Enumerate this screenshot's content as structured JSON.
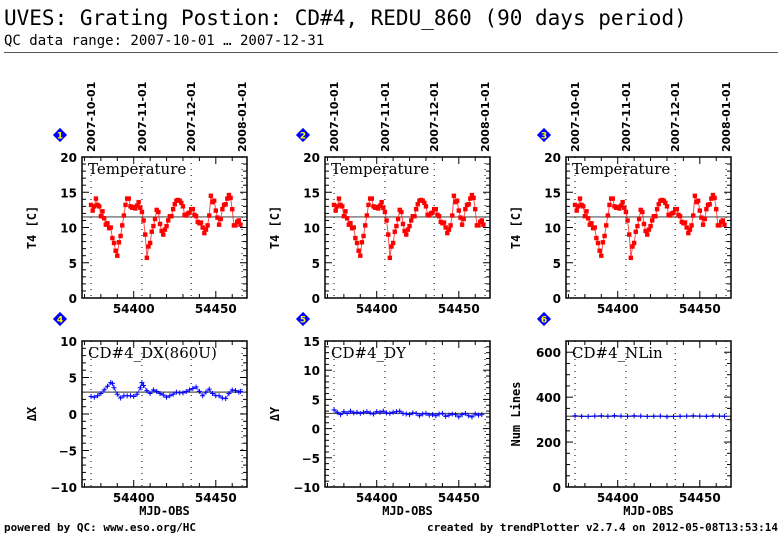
{
  "header": {
    "title": "UVES: Grating Postion: CD#4, REDU_860 (90 days period)",
    "subtitle": "QC data range: 2007-10-01 … 2007-12-31"
  },
  "footer": {
    "left": "powered by QC: www.eso.org/HC",
    "right": "created by trendPlotter v2.7.4 on 2012-05-08T13:53:14"
  },
  "colors": {
    "temperature": "#ff0000",
    "position": "#0000ff",
    "reference_line": "#555555",
    "badge": "#0000ff",
    "badge_text": "#ffff00"
  },
  "date_markers": {
    "labels": [
      "2007-10-01",
      "2007-11-01",
      "2007-12-01",
      "2008-01-01"
    ],
    "mjd": [
      54374,
      54405,
      54435,
      54466
    ]
  },
  "chart_data": [
    {
      "type": "line",
      "panel": 1,
      "badge": "1",
      "title": "Temperature",
      "xlabel": "",
      "ylabel": "T4 [C]",
      "xlim": [
        54368.5,
        54469
      ],
      "ylim": [
        0,
        20
      ],
      "xticks": [
        54400,
        54450
      ],
      "yticks": [
        0,
        5,
        10,
        15,
        20
      ],
      "reference": 11.5,
      "series_color": "temperature",
      "x": [
        54374,
        54375,
        54376,
        54377,
        54378,
        54379,
        54380,
        54381,
        54382,
        54383,
        54384,
        54385,
        54386,
        54387,
        54388,
        54389,
        54390,
        54391,
        54392,
        54393,
        54394,
        54395,
        54396,
        54397,
        54398,
        54399,
        54400,
        54401,
        54402,
        54403,
        54404,
        54405,
        54406,
        54407,
        54408,
        54409,
        54410,
        54411,
        54412,
        54413,
        54414,
        54415,
        54416,
        54417,
        54418,
        54419,
        54420,
        54421,
        54422,
        54423,
        54424,
        54425,
        54426,
        54427,
        54428,
        54429,
        54430,
        54431,
        54432,
        54433,
        54434,
        54435,
        54436,
        54437,
        54438,
        54439,
        54440,
        54441,
        54442,
        54443,
        54444,
        54445,
        54446,
        54447,
        54448,
        54449,
        54450,
        54451,
        54452,
        54453,
        54454,
        54455,
        54456,
        54457,
        54458,
        54459,
        54460,
        54461,
        54462,
        54463,
        54464,
        54465
      ],
      "values": [
        13.2,
        12.4,
        13.0,
        14.1,
        13.2,
        13.0,
        11.6,
        12.3,
        11.3,
        10.4,
        10.6,
        9.9,
        10.0,
        8.5,
        7.8,
        6.7,
        6.0,
        7.9,
        8.8,
        10.3,
        11.7,
        13.2,
        14.1,
        14.1,
        13.0,
        12.8,
        12.9,
        12.7,
        13.1,
        13.6,
        12.8,
        12.2,
        11.0,
        9.0,
        5.7,
        7.3,
        7.8,
        9.4,
        10.2,
        11.2,
        12.5,
        12.2,
        10.5,
        9.5,
        9.0,
        9.7,
        10.2,
        11.0,
        11.6,
        11.6,
        12.6,
        13.3,
        13.8,
        13.9,
        13.8,
        13.5,
        13.0,
        11.8,
        11.7,
        12.0,
        12.1,
        12.6,
        12.6,
        11.8,
        11.6,
        10.8,
        10.6,
        10.7,
        10.0,
        9.2,
        9.7,
        10.3,
        11.7,
        14.5,
        13.6,
        13.8,
        12.4,
        11.4,
        10.4,
        11.2,
        12.6,
        13.2,
        13.3,
        14.1,
        14.6,
        14.2,
        12.6,
        10.3,
        10.3,
        10.8,
        11.0,
        10.4
      ]
    },
    {
      "type": "line",
      "panel": 2,
      "badge": "2",
      "title": "Temperature",
      "xlabel": "",
      "ylabel": "T4 [C]",
      "xlim": [
        54368.5,
        54469
      ],
      "ylim": [
        0,
        20
      ],
      "xticks": [
        54400,
        54450
      ],
      "yticks": [
        0,
        5,
        10,
        15,
        20
      ],
      "reference": 11.5,
      "series_color": "temperature",
      "same_data_as_panel": 1
    },
    {
      "type": "line",
      "panel": 3,
      "badge": "3",
      "title": "Temperature",
      "xlabel": "",
      "ylabel": "T4 [C]",
      "xlim": [
        54368.5,
        54469
      ],
      "ylim": [
        0,
        20
      ],
      "xticks": [
        54400,
        54450
      ],
      "yticks": [
        0,
        5,
        10,
        15,
        20
      ],
      "reference": 11.5,
      "series_color": "temperature",
      "same_data_as_panel": 1
    },
    {
      "type": "line",
      "panel": 4,
      "badge": "4",
      "title": "CD#4_DX(860U)",
      "xlabel": "MJD-OBS",
      "ylabel": "ΔX",
      "xlim": [
        54368.5,
        54469
      ],
      "ylim": [
        -10,
        10
      ],
      "xticks": [
        54400,
        54450
      ],
      "yticks": [
        -10,
        -5,
        0,
        5,
        10
      ],
      "reference": 3.0,
      "series_color": "position",
      "x": [
        54374,
        54376,
        54378,
        54380,
        54382,
        54384,
        54386,
        54387,
        54388,
        54390,
        54392,
        54394,
        54396,
        54398,
        54400,
        54402,
        54404,
        54405,
        54406,
        54408,
        54410,
        54412,
        54414,
        54416,
        54418,
        54420,
        54422,
        54424,
        54426,
        54428,
        54430,
        54432,
        54434,
        54436,
        54438,
        54440,
        54442,
        54444,
        54446,
        54448,
        54450,
        54452,
        54454,
        54456,
        54458,
        54460,
        54462,
        54464,
        54465
      ],
      "values": [
        2.4,
        2.3,
        2.5,
        2.8,
        3.3,
        3.8,
        4.3,
        4.2,
        3.6,
        2.7,
        2.2,
        2.5,
        2.5,
        2.5,
        2.4,
        2.7,
        3.6,
        4.3,
        3.9,
        3.2,
        2.8,
        3.3,
        3.1,
        2.8,
        2.6,
        2.3,
        2.5,
        2.7,
        3.0,
        2.9,
        2.9,
        3.1,
        3.3,
        3.5,
        3.7,
        3.1,
        2.5,
        3.0,
        3.4,
        2.8,
        2.5,
        2.5,
        2.2,
        2.1,
        2.8,
        3.3,
        3.2,
        3.0,
        3.1
      ]
    },
    {
      "type": "line",
      "panel": 5,
      "badge": "5",
      "title": "CD#4_DY",
      "xlabel": "MJD-OBS",
      "ylabel": "ΔY",
      "xlim": [
        54368.5,
        54469
      ],
      "ylim": [
        -10,
        15
      ],
      "xticks": [
        54400,
        54450
      ],
      "yticks": [
        -10,
        -5,
        0,
        5,
        10,
        15
      ],
      "reference": 2.6,
      "series_color": "position",
      "x": [
        54374,
        54376,
        54378,
        54380,
        54382,
        54384,
        54386,
        54388,
        54390,
        54392,
        54394,
        54396,
        54398,
        54400,
        54402,
        54404,
        54406,
        54408,
        54410,
        54412,
        54414,
        54416,
        54418,
        54420,
        54422,
        54424,
        54426,
        54428,
        54430,
        54432,
        54434,
        54436,
        54438,
        54440,
        54442,
        54444,
        54446,
        54448,
        54450,
        54452,
        54454,
        54456,
        54458,
        54460,
        54462,
        54464
      ],
      "values": [
        3.2,
        2.8,
        2.4,
        2.9,
        2.6,
        3.0,
        2.7,
        2.8,
        2.6,
        2.8,
        2.9,
        2.7,
        2.5,
        2.9,
        2.8,
        3.0,
        2.7,
        2.6,
        2.8,
        2.9,
        3.0,
        2.6,
        2.5,
        2.4,
        2.7,
        2.6,
        2.2,
        2.5,
        2.6,
        2.3,
        2.4,
        2.2,
        2.5,
        2.6,
        2.1,
        2.3,
        2.5,
        2.4,
        2.0,
        2.4,
        2.6,
        2.2,
        2.0,
        2.5,
        2.3,
        2.4
      ]
    },
    {
      "type": "line",
      "panel": 6,
      "badge": "6",
      "title": "CD#4_NLin",
      "xlabel": "MJD-OBS",
      "ylabel": "Num Lines",
      "xlim": [
        54368.5,
        54469
      ],
      "ylim": [
        0,
        650
      ],
      "xticks": [
        54400,
        54450
      ],
      "yticks": [
        0,
        200,
        400,
        600
      ],
      "reference": 315,
      "series_color": "position",
      "x": [
        54374,
        54378,
        54382,
        54386,
        54390,
        54394,
        54398,
        54402,
        54406,
        54410,
        54414,
        54418,
        54422,
        54426,
        54430,
        54434,
        54438,
        54442,
        54446,
        54450,
        54454,
        54458,
        54462,
        54465
      ],
      "values": [
        317,
        315,
        314,
        316,
        317,
        315,
        318,
        316,
        315,
        317,
        316,
        314,
        315,
        316,
        313,
        314,
        315,
        316,
        317,
        316,
        315,
        317,
        316,
        315
      ]
    }
  ]
}
